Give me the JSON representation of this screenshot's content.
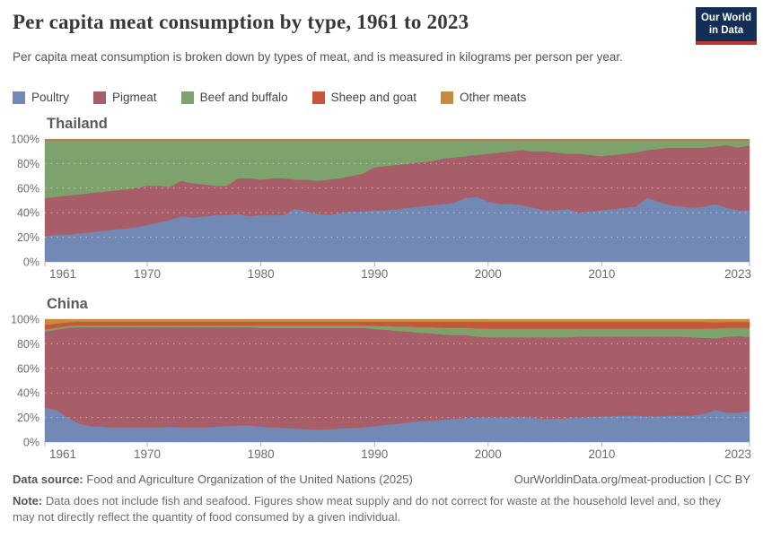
{
  "header": {
    "title": "Per capita meat consumption by type, 1961 to 2023",
    "subtitle": "Per capita meat consumption is broken down by types of meat, and is measured in kilograms per person per year."
  },
  "logo": {
    "line1": "Our World",
    "line2": "in Data",
    "bg_color": "#132f57",
    "bar_color": "#c0362c"
  },
  "legend": {
    "items": [
      {
        "label": "Poultry",
        "color": "#7189b4"
      },
      {
        "label": "Pigmeat",
        "color": "#a75e68"
      },
      {
        "label": "Beef and buffalo",
        "color": "#7da26b"
      },
      {
        "label": "Sheep and goat",
        "color": "#c6573b"
      },
      {
        "label": "Other meats",
        "color": "#c68b3f"
      }
    ]
  },
  "chart_data": [
    {
      "type": "area",
      "stacked": true,
      "unit": "% of total meat supply",
      "title": "Thailand",
      "years_range": [
        1961,
        2023
      ],
      "x_step": 1,
      "x_label_years": [
        1961,
        1970,
        1980,
        1990,
        2000,
        2010,
        2023
      ],
      "y_ticks": [
        "0%",
        "20%",
        "40%",
        "60%",
        "80%",
        "100%"
      ],
      "ylim": [
        0,
        100
      ],
      "grid": "white-dashed-horizontal",
      "series": [
        {
          "name": "Poultry",
          "color": "#7189b4",
          "values": [
            21,
            22,
            22,
            23,
            24,
            25,
            26,
            27,
            28,
            30,
            32,
            34,
            37,
            36,
            37,
            38,
            38,
            39,
            37,
            38,
            38,
            38,
            43,
            41,
            39,
            38,
            40,
            41,
            41,
            42,
            42,
            43,
            44,
            45,
            46,
            47,
            48,
            52,
            53,
            49,
            47,
            47,
            46,
            44,
            42,
            42,
            43,
            40,
            41,
            42,
            43,
            44,
            45,
            52,
            49,
            46,
            45,
            44,
            45,
            47,
            44,
            42,
            42
          ]
        },
        {
          "name": "Pigmeat",
          "color": "#a75e68",
          "values": [
            31,
            31,
            32,
            32,
            32,
            32,
            32,
            32,
            32,
            32,
            30,
            27,
            29,
            28,
            26,
            24,
            24,
            29,
            31,
            29,
            30,
            30,
            24,
            26,
            27,
            29,
            28,
            29,
            31,
            35,
            36,
            36,
            36,
            36,
            36,
            37,
            37,
            34,
            34,
            39,
            42,
            43,
            45,
            46,
            48,
            47,
            45,
            48,
            46,
            44,
            44,
            44,
            44,
            39,
            43,
            47,
            48,
            49,
            48,
            47,
            51,
            51,
            53
          ]
        },
        {
          "name": "Beef and buffalo",
          "color": "#7da26b",
          "values": [
            47,
            46,
            45,
            44,
            43,
            42,
            41,
            40,
            39,
            37,
            37,
            38,
            33,
            35,
            36,
            37,
            37,
            31,
            31,
            32,
            31,
            31,
            32,
            32,
            33,
            32,
            31,
            29,
            27,
            22,
            21,
            20,
            19,
            18,
            17,
            15,
            14,
            13,
            12,
            11,
            10,
            9,
            8,
            9,
            9,
            10,
            11,
            11,
            12,
            13,
            12,
            11,
            10,
            8,
            7,
            6,
            6,
            6,
            6,
            5,
            4,
            6,
            4
          ]
        },
        {
          "name": "Sheep and goat",
          "color": "#c6573b",
          "value_constant": 0.4
        },
        {
          "name": "Other meats",
          "color": "#c68b3f",
          "value_constant": 0.6
        }
      ]
    },
    {
      "type": "area",
      "stacked": true,
      "unit": "% of total meat supply",
      "title": "China",
      "years_range": [
        1961,
        2023
      ],
      "x_step": 1,
      "x_label_years": [
        1961,
        1970,
        1980,
        1990,
        2000,
        2010,
        2023
      ],
      "y_ticks": [
        "0%",
        "20%",
        "40%",
        "60%",
        "80%",
        "100%"
      ],
      "ylim": [
        0,
        100
      ],
      "grid": "white-dashed-horizontal",
      "series": [
        {
          "name": "Poultry",
          "color": "#7189b4",
          "values": [
            28,
            26,
            20,
            15,
            13,
            12.5,
            12,
            12,
            12,
            12,
            12,
            12.5,
            12,
            12,
            12,
            12.5,
            13,
            13.5,
            13.5,
            12.5,
            12,
            11.5,
            11,
            10.5,
            10,
            10.5,
            11,
            11.5,
            12,
            13,
            14,
            15,
            16,
            17,
            17.5,
            18,
            19,
            19.5,
            20,
            20,
            20,
            20,
            20.5,
            19.5,
            19,
            19,
            19.5,
            20,
            20.5,
            21,
            21,
            21.5,
            21.5,
            21,
            21,
            21.5,
            21.5,
            21.5,
            23,
            26,
            24,
            24,
            25
          ]
        },
        {
          "name": "Pigmeat",
          "color": "#a75e68",
          "values": [
            62,
            65.5,
            73,
            78.5,
            80.5,
            81,
            81.5,
            81.5,
            81.5,
            81.5,
            81.5,
            81,
            81.5,
            81.5,
            81.5,
            81,
            80.5,
            80,
            80,
            80.5,
            81,
            81.5,
            82,
            82.5,
            83,
            82.5,
            82,
            81.5,
            81,
            79,
            77.5,
            75.5,
            74,
            72,
            71,
            69.5,
            68,
            67.5,
            66,
            65.3,
            65.3,
            65.3,
            64.8,
            65.8,
            66.3,
            66.3,
            65.8,
            65.8,
            65.3,
            64.8,
            64.8,
            64.3,
            64.3,
            64.8,
            64.8,
            64.3,
            64.3,
            63.8,
            61.8,
            58.5,
            61.8,
            62.3,
            60.8
          ]
        },
        {
          "name": "Beef and buffalo",
          "color": "#7da26b",
          "values": [
            1.5,
            1.5,
            1.5,
            1.5,
            1.5,
            1.5,
            1.5,
            1.5,
            1.5,
            1.5,
            1.5,
            1.5,
            1.5,
            1.5,
            1.5,
            1.5,
            1.5,
            1.5,
            1.5,
            2,
            2,
            2,
            2,
            2,
            2,
            2,
            2,
            2,
            2,
            2.5,
            3,
            3.5,
            4,
            4.5,
            5,
            5.5,
            6,
            6,
            6.5,
            7,
            7,
            7,
            7,
            7,
            7,
            7,
            7,
            6.5,
            6.5,
            6.5,
            6.5,
            6.5,
            6.5,
            6.5,
            6.5,
            6.5,
            6.5,
            7,
            7.5,
            8,
            7,
            6.5,
            7
          ]
        },
        {
          "name": "Sheep and goat",
          "color": "#c6573b",
          "values": [
            4,
            3.5,
            3,
            3,
            3,
            3,
            3,
            3,
            3,
            3,
            3,
            3,
            3,
            3,
            3,
            3,
            3,
            3,
            3,
            3,
            3,
            3,
            3,
            3,
            3,
            3,
            3,
            3,
            3,
            3.5,
            3.5,
            4,
            4,
            4.5,
            4.5,
            5,
            5,
            5,
            5.5,
            5.5,
            5.5,
            5.5,
            5.5,
            5.5,
            5.5,
            5.5,
            5.5,
            5.5,
            5.5,
            5.5,
            5.5,
            5.5,
            5.5,
            5.5,
            5.5,
            5.5,
            5.5,
            5.5,
            5.5,
            5,
            5,
            5,
            5
          ]
        },
        {
          "name": "Other meats",
          "color": "#c68b3f",
          "values": [
            4.5,
            3.5,
            2.5,
            2,
            2,
            2,
            2,
            2,
            2,
            2,
            2,
            2,
            2,
            2,
            2,
            2,
            2,
            2,
            2,
            2,
            2,
            2,
            2,
            2,
            2,
            2,
            2,
            2,
            2,
            2,
            2,
            2,
            2,
            2,
            2,
            2,
            2,
            2,
            2,
            2.2,
            2.2,
            2.2,
            2.2,
            2.2,
            2.2,
            2.2,
            2.2,
            2.2,
            2.2,
            2.2,
            2.2,
            2.2,
            2.2,
            2.2,
            2.2,
            2.2,
            2.2,
            2.2,
            2.2,
            2.5,
            2.2,
            2.2,
            2.2
          ]
        }
      ]
    }
  ],
  "footer": {
    "source_label": "Data source:",
    "source_value": "Food and Agriculture Organization of the United Nations (2025)",
    "link": "OurWorldinData.org/meat-production | CC BY",
    "note_label": "Note:",
    "note_text": "Data does not include fish and seafood. Figures show meat supply and do not correct for waste at the household level and, so they may not directly reflect the quantity of food consumed by a given individual."
  },
  "style": {
    "axis_label_color": "#6e6e6e",
    "tick_color": "#b3b3b3",
    "gridline_color": "rgba(255,255,255,0.5)"
  }
}
